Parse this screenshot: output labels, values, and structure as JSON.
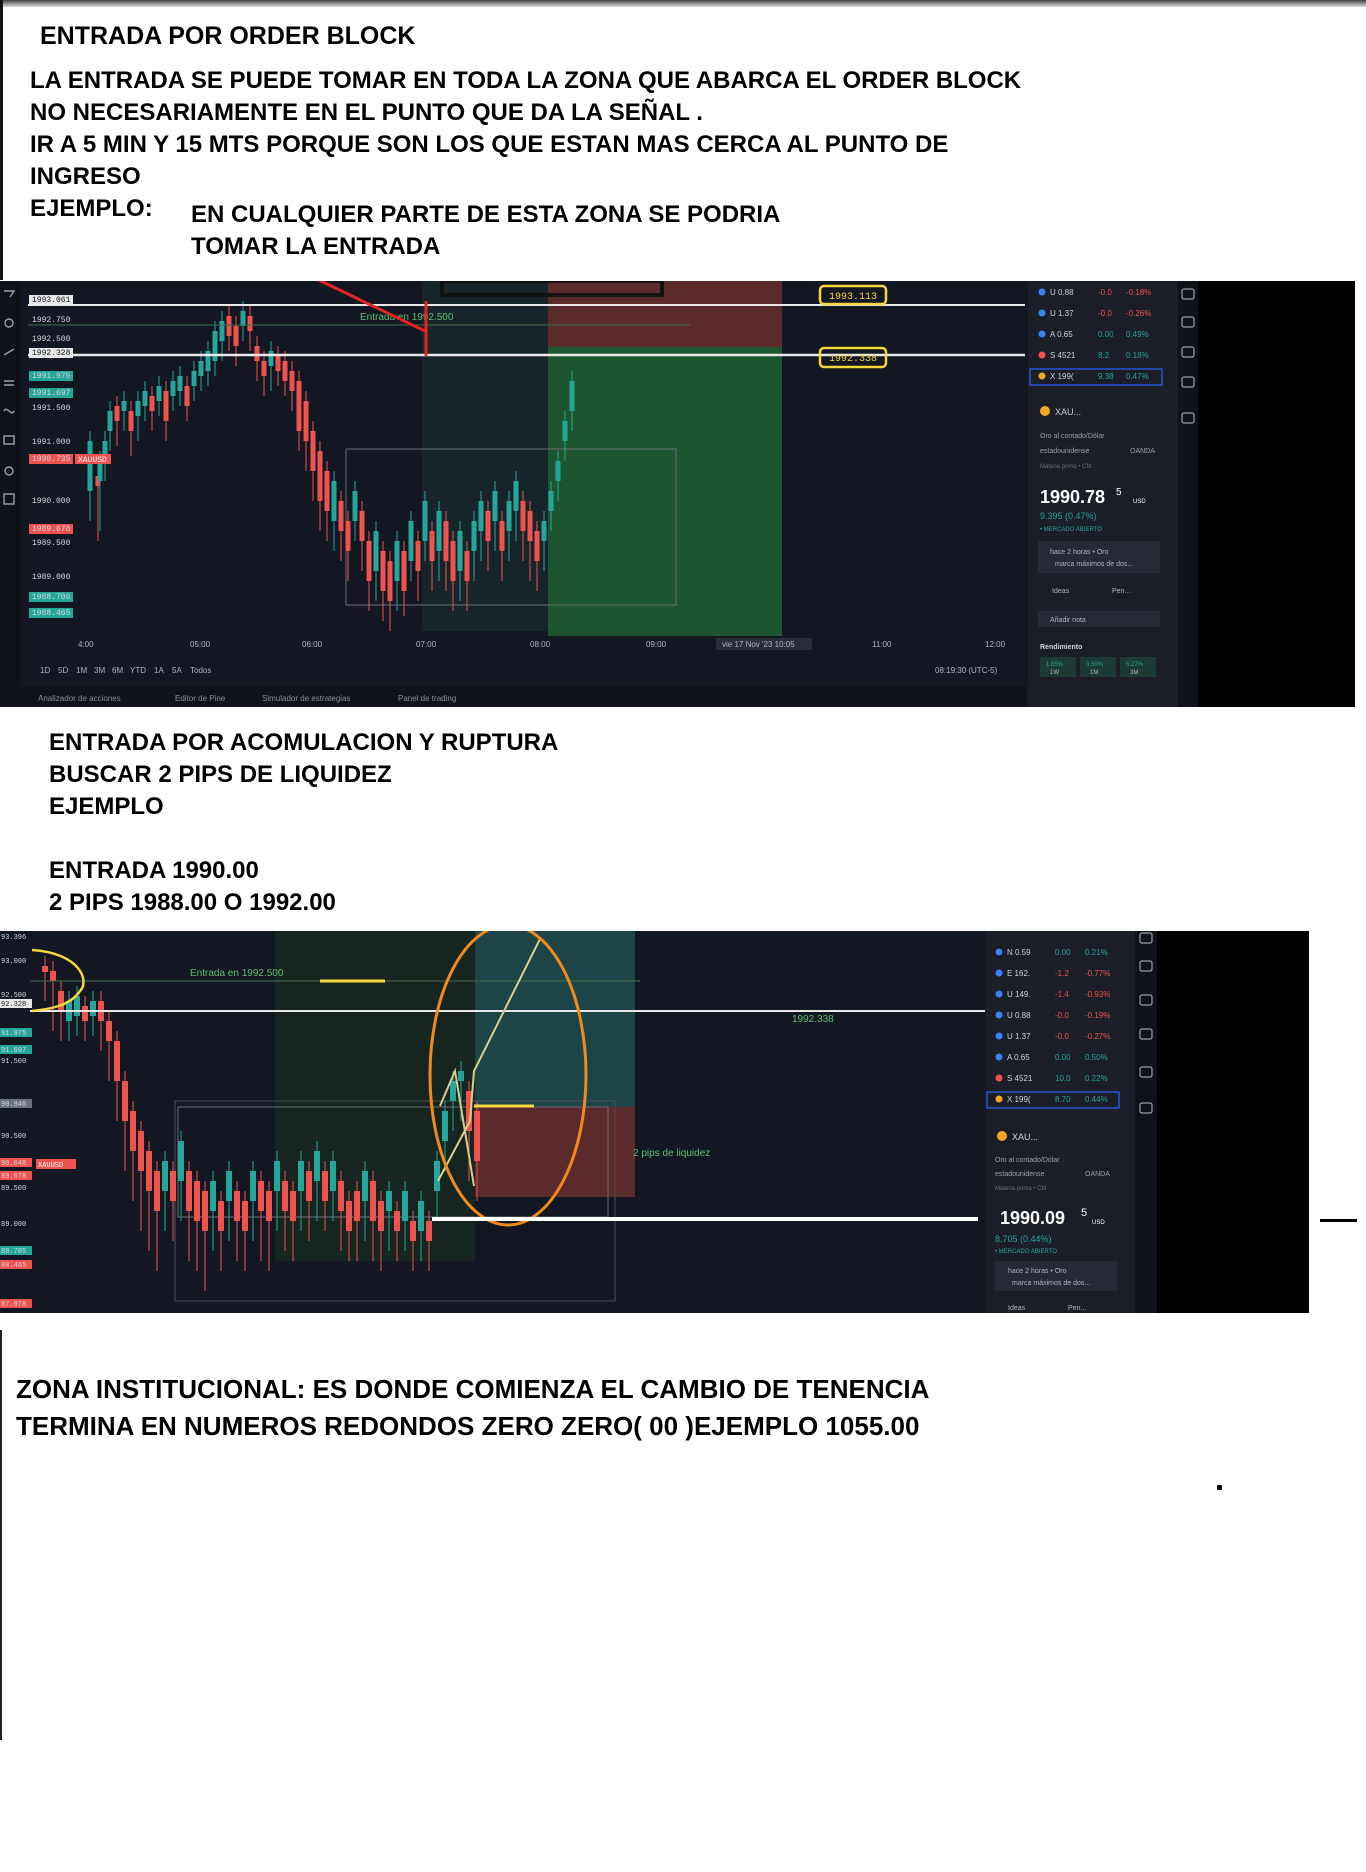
{
  "section1": {
    "title": "ENTRADA POR ORDER BLOCK",
    "lines": [
      "LA  ENTRADA SE PUEDE TOMAR EN TODA LA ZONA QUE ABARCA EL ORDER BLOCK",
      "NO NECESARIAMENTE EN EL PUNTO QUE DA LA SEÑAL .",
      "IR A 5 MIN Y 15 MTS PORQUE SON LOS QUE ESTAN MAS CERCA AL PUNTO DE",
      "INGRESO",
      "EJEMPLO:"
    ],
    "annotation": [
      "EN CUALQUIER PARTE DE ESTA ZONA SE PODRIA",
      "TOMAR LA ENTRADA"
    ]
  },
  "chart1": {
    "price_labels": [
      "1993.061",
      "1992.750",
      "1992.500",
      "1992.328",
      "1991.975",
      "1991.697",
      "1991.500",
      "1991.000",
      "1990.735",
      "1990.000",
      "1989.678",
      "1989.500",
      "1989.000",
      "1988.706",
      "1988.465"
    ],
    "ticker_tag": "XAUUSD",
    "entry_label": "Entrada en 1992.500",
    "box_label_1": "1993.113",
    "box_label_2": "1992.338",
    "time_labels": [
      "4:00",
      "05:00",
      "06:00",
      "07:00",
      "08:00",
      "09:00",
      "vie 17 Nov '23  10:05",
      "11:00",
      "12:00"
    ],
    "ranges": [
      "1D",
      "5D",
      "1M",
      "3M",
      "6M",
      "YTD",
      "1A",
      "5A",
      "Todos"
    ],
    "clock": "08:19:30 (UTC-5)",
    "bottom_tabs": [
      "Analizador de acciones",
      "Editor de Pine",
      "Simulador de estrategias",
      "Panel de trading"
    ],
    "watchlist": [
      {
        "sym": "U",
        "v1": "0.88",
        "v2": "-0.0",
        "v3": "-0.18%"
      },
      {
        "sym": "U",
        "v1": "1.37",
        "v2": "-0.0",
        "v3": "-0.26%"
      },
      {
        "sym": "A",
        "v1": "0.65",
        "v2": "0.00",
        "v3": "0.49%"
      },
      {
        "sym": "S",
        "v1": "4521",
        "v2": "8.2",
        "v3": "0.18%"
      },
      {
        "sym": "X",
        "v1": "199(",
        "v2": "9.38",
        "v3": "0.47%"
      }
    ],
    "symbol": "XAU...",
    "desc1": "Oro al contado/Dólar",
    "desc2": "estadounidense",
    "broker": "OANDA",
    "sub": "Materia prima • Cfd",
    "price_main": "1990.78",
    "price_sup": "5",
    "price_unit": "USD",
    "change": "9.395 (0.47%)",
    "market": "• MERCADO ABIERTO",
    "news1": "hace 2 horas • Oro",
    "news2": "marca máximos de dos...",
    "ideas": "Ideas",
    "pen": "Pen...",
    "note": "Añadir nota",
    "perf": "Rendimiento",
    "perf_vals": [
      "1.85%",
      "3.50%",
      "5.27%"
    ],
    "perf_labels": [
      "1W",
      "1M",
      "3M"
    ]
  },
  "section2": {
    "lines": [
      "ENTRADA POR ACOMULACION Y RUPTURA",
      "BUSCAR 2 PIPS DE LIQUIDEZ",
      "EJEMPLO",
      "",
      "ENTRADA 1990.00",
      "2 PIPS 1988.00 O 1992.00"
    ]
  },
  "chart2": {
    "price_labels": [
      "93.396",
      "93.000",
      "92.500",
      "92.328",
      "91.975",
      "91.697",
      "91.500",
      "90.946",
      "90.500",
      "90.048",
      "89.678",
      "89.500",
      "89.000",
      "88.705",
      "88.465",
      "87.978"
    ],
    "ticker_tag": "XAUUSD",
    "entry_label": "Entrada en 1992.500",
    "level_label": "1992.338",
    "liq_label": "2 pips de liquidez",
    "watchlist": [
      {
        "sym": "N",
        "v1": "0.59",
        "v2": "0.00",
        "v3": "0.21%"
      },
      {
        "sym": "E",
        "v1": "162.",
        "v2": "-1.2",
        "v3": "-0.77%"
      },
      {
        "sym": "U",
        "v1": "149.",
        "v2": "-1.4",
        "v3": "-0.93%"
      },
      {
        "sym": "U",
        "v1": "0.88",
        "v2": "-0.0",
        "v3": "-0.19%"
      },
      {
        "sym": "U",
        "v1": "1.37",
        "v2": "-0.0",
        "v3": "-0.27%"
      },
      {
        "sym": "A",
        "v1": "0.65",
        "v2": "0.00",
        "v3": "0.50%"
      },
      {
        "sym": "S",
        "v1": "4521",
        "v2": "10.0",
        "v3": "0.22%"
      },
      {
        "sym": "X",
        "v1": "199(",
        "v2": "8.70",
        "v3": "0.44%"
      }
    ],
    "symbol": "XAU...",
    "desc1": "Oro al contado/Dólar",
    "desc2": "estadounidense",
    "broker": "OANDA",
    "sub": "Materia prima • Cfd",
    "price_main": "1990.09",
    "price_sup": "5",
    "price_unit": "USD",
    "change": "8.705 (0.44%)",
    "market": "• MERCADO ABIERTO",
    "news1": "hace 2 horas • Oro",
    "news2": "marca máximos de dos...",
    "ideas": "Ideas",
    "pen": "Pen..."
  },
  "section3": {
    "lines": [
      "ZONA INSTITUCIONAL: ES DONDE COMIENZA EL CAMBIO DE TENENCIA",
      "TERMINA EN  NUMEROS REDONDOS ZERO ZERO( 00 )EJEMPLO 1055.00"
    ]
  },
  "colors": {
    "up": "#26a69a",
    "down": "#ef5350",
    "panel": "#131722",
    "highlight": "#f5d63d",
    "annotation": "#e52323",
    "circle": "#f28a1c"
  }
}
